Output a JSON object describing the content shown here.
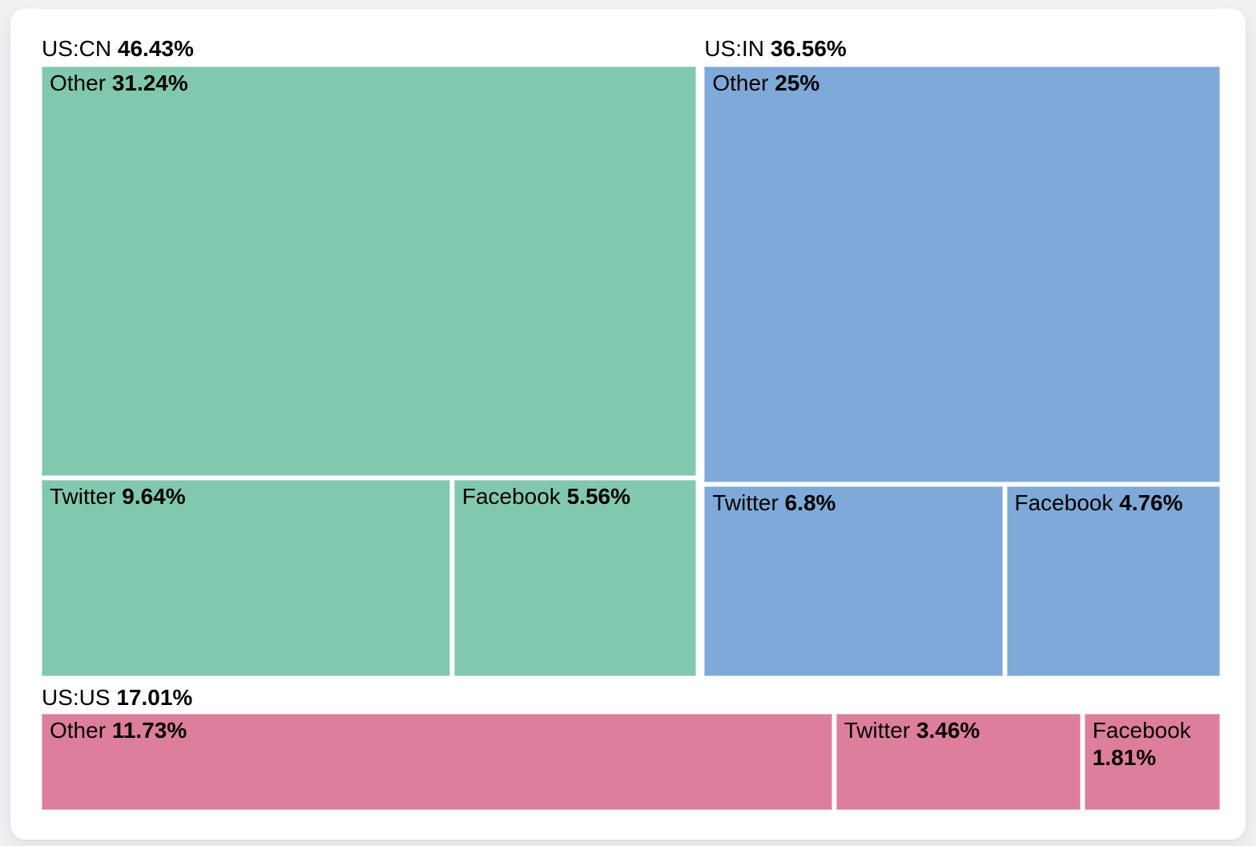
{
  "theme": {
    "page_background": "#f0f1f3",
    "card_background": "#ffffff",
    "text_color": "#000000"
  },
  "chart_data": {
    "type": "treemap",
    "title": "",
    "legend_position": "none",
    "value_unit": "percent",
    "layout": "grouped treemap: US:CN and US:IN side by side on top, US:US strip across bottom; each group header above its rectangles",
    "groups": [
      {
        "label": "US:CN",
        "value": 46.43,
        "value_label": "46.43%",
        "color": "#82c8ae",
        "children": [
          {
            "label": "Other",
            "value": 31.24,
            "value_label": "31.24%"
          },
          {
            "label": "Twitter",
            "value": 9.64,
            "value_label": "9.64%"
          },
          {
            "label": "Facebook",
            "value": 5.56,
            "value_label": "5.56%"
          }
        ]
      },
      {
        "label": "US:IN",
        "value": 36.56,
        "value_label": "36.56%",
        "color": "#7fa9d9",
        "children": [
          {
            "label": "Other",
            "value": 25,
            "value_label": "25%"
          },
          {
            "label": "Twitter",
            "value": 6.8,
            "value_label": "6.8%"
          },
          {
            "label": "Facebook",
            "value": 4.76,
            "value_label": "4.76%"
          }
        ]
      },
      {
        "label": "US:US",
        "value": 17.01,
        "value_label": "17.01%",
        "color": "#de7e9d",
        "children": [
          {
            "label": "Other",
            "value": 11.73,
            "value_label": "11.73%"
          },
          {
            "label": "Twitter",
            "value": 3.46,
            "value_label": "3.46%"
          },
          {
            "label": "Facebook",
            "value": 1.81,
            "value_label": "1.81%"
          }
        ]
      }
    ]
  }
}
